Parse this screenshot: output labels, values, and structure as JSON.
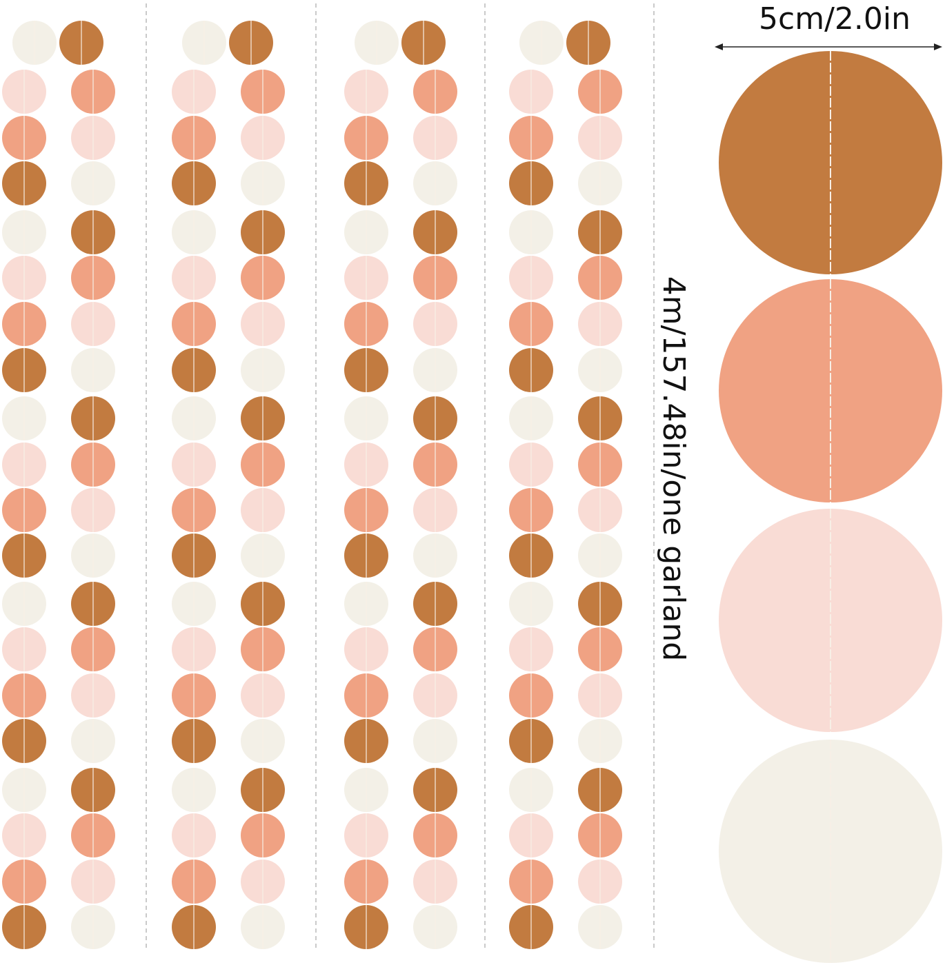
{
  "dimensions": {
    "width_label": "5cm/2.0in",
    "length_label": "4m/157.48in/one garland"
  },
  "colors": {
    "copper": "#c27b40",
    "salmon": "#f0a283",
    "pink": "#f9dcd5",
    "cream": "#f3f0e7",
    "divider": "#b8b8b8",
    "stitch": "#f7efe6"
  },
  "garland": {
    "count": 4,
    "top_pair": [
      "cream",
      "copper"
    ],
    "left_sequence": [
      "pink",
      "salmon",
      "copper",
      "cream"
    ],
    "right_sequence": [
      "salmon",
      "pink",
      "cream",
      "copper"
    ]
  },
  "detail_circles": [
    "copper",
    "salmon",
    "pink",
    "cream"
  ]
}
